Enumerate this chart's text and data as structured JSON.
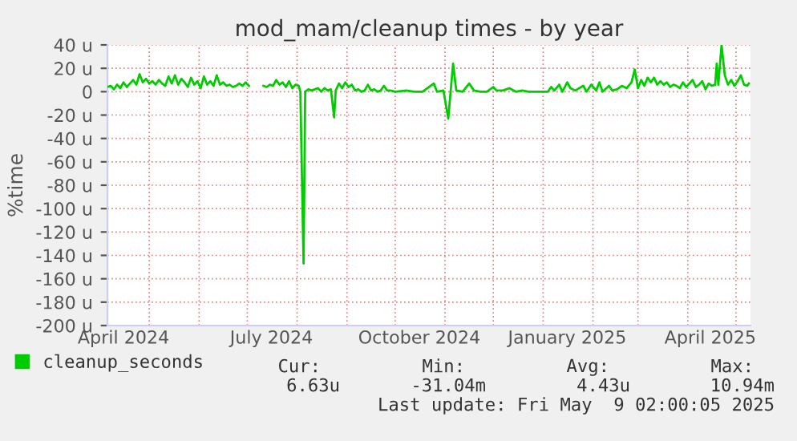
{
  "chart_data": {
    "type": "line",
    "title": "mod_mam/cleanup times - by year",
    "ylabel": "%time",
    "x": [
      "2024-04-05",
      "2024-04-07",
      "2024-04-09",
      "2024-04-11",
      "2024-04-13",
      "2024-04-15",
      "2024-04-17",
      "2024-04-19",
      "2024-04-21",
      "2024-04-23",
      "2024-04-25",
      "2024-04-27",
      "2024-04-29",
      "2024-05-01",
      "2024-05-03",
      "2024-05-05",
      "2024-05-07",
      "2024-05-09",
      "2024-05-11",
      "2024-05-13",
      "2024-05-15",
      "2024-05-17",
      "2024-05-19",
      "2024-05-21",
      "2024-05-23",
      "2024-05-25",
      "2024-05-27",
      "2024-05-29",
      "2024-05-31",
      "2024-06-02",
      "2024-06-04",
      "2024-06-06",
      "2024-06-08",
      "2024-06-10",
      "2024-06-12",
      "2024-06-14",
      "2024-06-16",
      "2024-06-18",
      "2024-06-20",
      "2024-06-22",
      "2024-06-24",
      "2024-06-26",
      "2024-06-28",
      "2024-06-30",
      "2024-07-02",
      "2024-07-05",
      "2024-07-11",
      "2024-07-13",
      "2024-07-15",
      "2024-07-17",
      "2024-07-19",
      "2024-07-21",
      "2024-07-23",
      "2024-07-25",
      "2024-07-27",
      "2024-07-29",
      "2024-07-31",
      "2024-08-02",
      "2024-08-03",
      "2024-08-05",
      "2024-08-06",
      "2024-08-08",
      "2024-08-10",
      "2024-08-12",
      "2024-08-14",
      "2024-08-16",
      "2024-08-18",
      "2024-08-20",
      "2024-08-22",
      "2024-08-24",
      "2024-08-25",
      "2024-08-27",
      "2024-08-29",
      "2024-08-31",
      "2024-09-02",
      "2024-09-04",
      "2024-09-06",
      "2024-09-08",
      "2024-09-10",
      "2024-09-12",
      "2024-09-14",
      "2024-09-16",
      "2024-09-18",
      "2024-09-20",
      "2024-09-22",
      "2024-09-24",
      "2024-09-26",
      "2024-09-28",
      "2024-10-01",
      "2024-10-08",
      "2024-10-13",
      "2024-10-18",
      "2024-10-25",
      "2024-10-27",
      "2024-10-31",
      "2024-11-03",
      "2024-11-06",
      "2024-11-08",
      "2024-11-12",
      "2024-11-16",
      "2024-11-19",
      "2024-11-23",
      "2024-11-27",
      "2024-12-01",
      "2024-12-03",
      "2024-12-07",
      "2024-12-11",
      "2024-12-15",
      "2024-12-19",
      "2024-12-23",
      "2024-12-27",
      "2024-12-31",
      "2025-01-04",
      "2025-01-06",
      "2025-01-08",
      "2025-01-11",
      "2025-01-13",
      "2025-01-16",
      "2025-01-18",
      "2025-01-21",
      "2025-01-26",
      "2025-01-28",
      "2025-01-31",
      "2025-02-03",
      "2025-02-05",
      "2025-02-07",
      "2025-02-11",
      "2025-02-13",
      "2025-02-16",
      "2025-02-19",
      "2025-02-22",
      "2025-02-25",
      "2025-02-27",
      "2025-03-01",
      "2025-03-03",
      "2025-03-05",
      "2025-03-07",
      "2025-03-09",
      "2025-03-11",
      "2025-03-13",
      "2025-03-15",
      "2025-03-17",
      "2025-03-19",
      "2025-03-21",
      "2025-03-23",
      "2025-03-25",
      "2025-03-27",
      "2025-03-29",
      "2025-03-31",
      "2025-04-02",
      "2025-04-04",
      "2025-04-06",
      "2025-04-08",
      "2025-04-10",
      "2025-04-12",
      "2025-04-14",
      "2025-04-16",
      "2025-04-18",
      "2025-04-19",
      "2025-04-20",
      "2025-04-22",
      "2025-04-24",
      "2025-04-26",
      "2025-04-28",
      "2025-04-30",
      "2025-05-02",
      "2025-05-04",
      "2025-05-06",
      "2025-05-08",
      "2025-05-09"
    ],
    "series": [
      {
        "name": "cleanup_seconds",
        "color": "#00cc00",
        "values": [
          4,
          5,
          2,
          6,
          3,
          8,
          4,
          7,
          10,
          6,
          15,
          8,
          11,
          7,
          9,
          6,
          10,
          7,
          5,
          13,
          7,
          14,
          6,
          11,
          8,
          4,
          12,
          6,
          9,
          3,
          13,
          6,
          9,
          5,
          14,
          6,
          8,
          5,
          6,
          4,
          5,
          7,
          5,
          8,
          5,
          null,
          5,
          4,
          6,
          5,
          10,
          6,
          8,
          4,
          9,
          3,
          6,
          5,
          0,
          -147,
          0,
          2,
          1,
          2,
          3,
          0,
          3,
          1,
          2,
          -22,
          1,
          7,
          3,
          8,
          4,
          6,
          1,
          2,
          0,
          1,
          6,
          1,
          2,
          0,
          1,
          5,
          1,
          1,
          0,
          1,
          0,
          0,
          7,
          0,
          1,
          -23,
          24,
          1,
          0,
          7,
          1,
          0,
          0,
          4,
          1,
          1,
          3,
          0,
          1,
          0,
          0,
          0,
          0,
          4,
          1,
          6,
          0,
          8,
          3,
          1,
          5,
          0,
          6,
          1,
          8,
          0,
          5,
          1,
          2,
          5,
          3,
          8,
          19,
          3,
          10,
          5,
          12,
          8,
          12,
          6,
          9,
          6,
          8,
          4,
          6,
          5,
          3,
          8,
          4,
          7,
          10,
          4,
          6,
          9,
          2,
          7,
          5,
          6,
          24,
          6,
          40,
          14,
          6,
          10,
          5,
          9,
          14,
          6,
          5,
          7
        ]
      }
    ],
    "xlim": [
      "2024-04-05",
      "2025-05-10"
    ],
    "xticks": [
      {
        "value": "2024-04-15",
        "label": "April 2024"
      },
      {
        "value": "2024-05-01",
        "label": null
      },
      {
        "value": "2024-06-01",
        "label": null
      },
      {
        "value": "2024-07-01",
        "label": null
      },
      {
        "value": "2024-07-16",
        "label": "July 2024"
      },
      {
        "value": "2024-08-01",
        "label": null
      },
      {
        "value": "2024-09-01",
        "label": null
      },
      {
        "value": "2024-10-01",
        "label": null
      },
      {
        "value": "2024-10-16",
        "label": "October 2024"
      },
      {
        "value": "2024-11-01",
        "label": null
      },
      {
        "value": "2024-12-01",
        "label": null
      },
      {
        "value": "2025-01-01",
        "label": null
      },
      {
        "value": "2025-01-16",
        "label": "January 2025"
      },
      {
        "value": "2025-02-01",
        "label": null
      },
      {
        "value": "2025-03-01",
        "label": null
      },
      {
        "value": "2025-04-01",
        "label": null
      },
      {
        "value": "2025-04-15",
        "label": "April 2025"
      },
      {
        "value": "2025-05-01",
        "label": null
      }
    ],
    "ylim": [
      -200,
      40
    ],
    "yticks": [
      {
        "value": -200,
        "label": "-200 u"
      },
      {
        "value": -180,
        "label": "-180 u"
      },
      {
        "value": -160,
        "label": "-160 u"
      },
      {
        "value": -140,
        "label": "-140 u"
      },
      {
        "value": -120,
        "label": "-120 u"
      },
      {
        "value": -100,
        "label": "-100 u"
      },
      {
        "value": -80,
        "label": "-80 u"
      },
      {
        "value": -60,
        "label": "-60 u"
      },
      {
        "value": -40,
        "label": "-40 u"
      },
      {
        "value": -20,
        "label": "-20 u"
      },
      0,
      {
        "value": 20,
        "label": "20 u"
      },
      {
        "value": 40,
        "label": "40 u"
      }
    ],
    "grid": true,
    "legend": "bottom left",
    "annotations": [
      "Cur:",
      "Min:",
      "Avg:",
      "Max:",
      "6.63u",
      "-31.04m",
      "4.43u",
      "10.94m",
      "Last update: Fri May  9 02:00:05 2025"
    ]
  }
}
